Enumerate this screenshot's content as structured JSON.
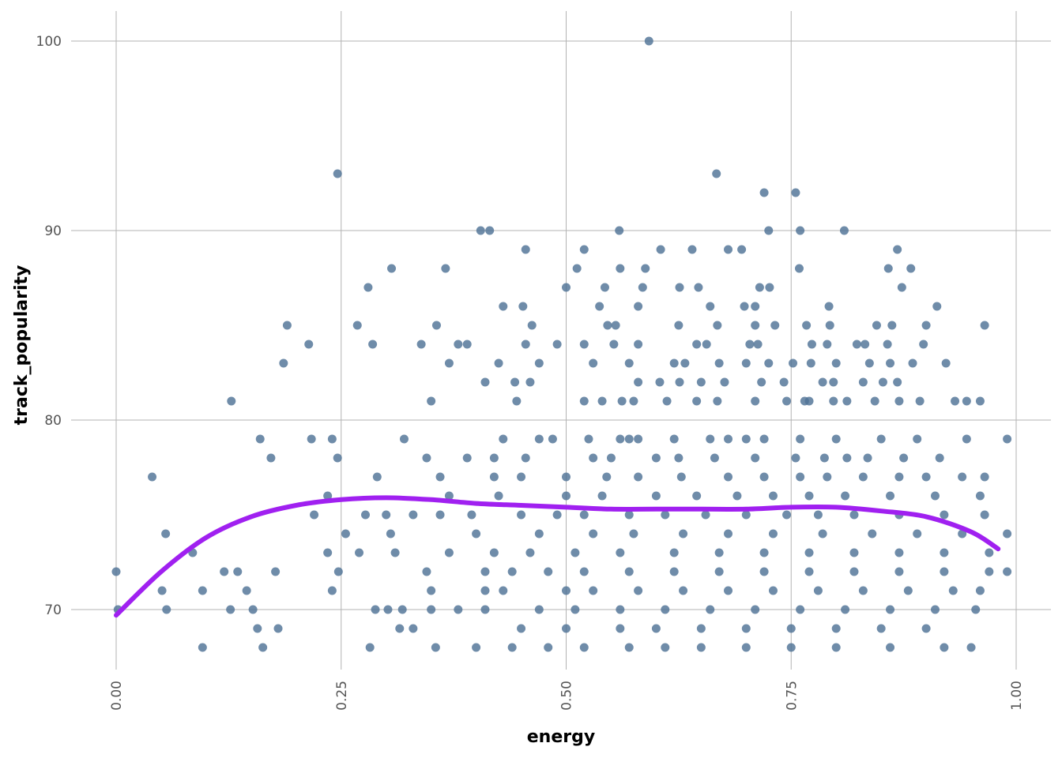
{
  "chart_data": {
    "type": "scatter",
    "title": "",
    "xlabel": "energy",
    "ylabel": "track_popularity",
    "xlim": [
      0,
      1
    ],
    "ylim": [
      68,
      100
    ],
    "x_ticks": [
      0,
      0.25,
      0.5,
      0.75,
      1.0
    ],
    "x_tick_labels": [
      "0.00",
      "0.25",
      "0.50",
      "0.75",
      "1.00"
    ],
    "y_ticks": [
      70,
      80,
      90,
      100
    ],
    "y_tick_labels": [
      "70",
      "80",
      "90",
      "100"
    ],
    "grid": true,
    "legend": "none",
    "point_color": "#4f7396",
    "trend_color": "#a020f0",
    "points": [
      [
        0.592,
        100
      ],
      [
        0.246,
        93
      ],
      [
        0.667,
        93
      ],
      [
        0.72,
        92
      ],
      [
        0.755,
        92
      ],
      [
        0.405,
        90
      ],
      [
        0.415,
        90
      ],
      [
        0.559,
        90
      ],
      [
        0.725,
        90
      ],
      [
        0.76,
        90
      ],
      [
        0.809,
        90
      ],
      [
        0.455,
        89
      ],
      [
        0.52,
        89
      ],
      [
        0.605,
        89
      ],
      [
        0.64,
        89
      ],
      [
        0.68,
        89
      ],
      [
        0.695,
        89
      ],
      [
        0.868,
        89
      ],
      [
        0.306,
        88
      ],
      [
        0.366,
        88
      ],
      [
        0.512,
        88
      ],
      [
        0.56,
        88
      ],
      [
        0.588,
        88
      ],
      [
        0.759,
        88
      ],
      [
        0.858,
        88
      ],
      [
        0.883,
        88
      ],
      [
        0.28,
        87
      ],
      [
        0.5,
        87
      ],
      [
        0.543,
        87
      ],
      [
        0.585,
        87
      ],
      [
        0.626,
        87
      ],
      [
        0.647,
        87
      ],
      [
        0.715,
        87
      ],
      [
        0.726,
        87
      ],
      [
        0.873,
        87
      ],
      [
        0.43,
        86
      ],
      [
        0.452,
        86
      ],
      [
        0.537,
        86
      ],
      [
        0.58,
        86
      ],
      [
        0.66,
        86
      ],
      [
        0.698,
        86
      ],
      [
        0.71,
        86
      ],
      [
        0.792,
        86
      ],
      [
        0.912,
        86
      ],
      [
        0.19,
        85
      ],
      [
        0.268,
        85
      ],
      [
        0.356,
        85
      ],
      [
        0.462,
        85
      ],
      [
        0.546,
        85
      ],
      [
        0.555,
        85
      ],
      [
        0.625,
        85
      ],
      [
        0.668,
        85
      ],
      [
        0.71,
        85
      ],
      [
        0.732,
        85
      ],
      [
        0.767,
        85
      ],
      [
        0.793,
        85
      ],
      [
        0.845,
        85
      ],
      [
        0.862,
        85
      ],
      [
        0.9,
        85
      ],
      [
        0.965,
        85
      ],
      [
        0.214,
        84
      ],
      [
        0.285,
        84
      ],
      [
        0.339,
        84
      ],
      [
        0.38,
        84
      ],
      [
        0.39,
        84
      ],
      [
        0.455,
        84
      ],
      [
        0.49,
        84
      ],
      [
        0.52,
        84
      ],
      [
        0.553,
        84
      ],
      [
        0.58,
        84
      ],
      [
        0.645,
        84
      ],
      [
        0.656,
        84
      ],
      [
        0.704,
        84
      ],
      [
        0.713,
        84
      ],
      [
        0.773,
        84
      ],
      [
        0.79,
        84
      ],
      [
        0.823,
        84
      ],
      [
        0.832,
        84
      ],
      [
        0.857,
        84
      ],
      [
        0.897,
        84
      ],
      [
        0.186,
        83
      ],
      [
        0.37,
        83
      ],
      [
        0.425,
        83
      ],
      [
        0.47,
        83
      ],
      [
        0.53,
        83
      ],
      [
        0.57,
        83
      ],
      [
        0.62,
        83
      ],
      [
        0.632,
        83
      ],
      [
        0.67,
        83
      ],
      [
        0.7,
        83
      ],
      [
        0.725,
        83
      ],
      [
        0.752,
        83
      ],
      [
        0.772,
        83
      ],
      [
        0.8,
        83
      ],
      [
        0.837,
        83
      ],
      [
        0.86,
        83
      ],
      [
        0.885,
        83
      ],
      [
        0.922,
        83
      ],
      [
        0.41,
        82
      ],
      [
        0.443,
        82
      ],
      [
        0.46,
        82
      ],
      [
        0.58,
        82
      ],
      [
        0.604,
        82
      ],
      [
        0.626,
        82
      ],
      [
        0.65,
        82
      ],
      [
        0.676,
        82
      ],
      [
        0.717,
        82
      ],
      [
        0.742,
        82
      ],
      [
        0.785,
        82
      ],
      [
        0.797,
        82
      ],
      [
        0.83,
        82
      ],
      [
        0.852,
        82
      ],
      [
        0.868,
        82
      ],
      [
        0.128,
        81
      ],
      [
        0.35,
        81
      ],
      [
        0.445,
        81
      ],
      [
        0.52,
        81
      ],
      [
        0.54,
        81
      ],
      [
        0.562,
        81
      ],
      [
        0.575,
        81
      ],
      [
        0.612,
        81
      ],
      [
        0.645,
        81
      ],
      [
        0.668,
        81
      ],
      [
        0.71,
        81
      ],
      [
        0.745,
        81
      ],
      [
        0.765,
        81
      ],
      [
        0.77,
        81
      ],
      [
        0.797,
        81
      ],
      [
        0.812,
        81
      ],
      [
        0.843,
        81
      ],
      [
        0.87,
        81
      ],
      [
        0.893,
        81
      ],
      [
        0.932,
        81
      ],
      [
        0.945,
        81
      ],
      [
        0.96,
        81
      ],
      [
        0.16,
        79
      ],
      [
        0.217,
        79
      ],
      [
        0.24,
        79
      ],
      [
        0.32,
        79
      ],
      [
        0.43,
        79
      ],
      [
        0.47,
        79
      ],
      [
        0.485,
        79
      ],
      [
        0.525,
        79
      ],
      [
        0.56,
        79
      ],
      [
        0.57,
        79
      ],
      [
        0.58,
        79
      ],
      [
        0.62,
        79
      ],
      [
        0.66,
        79
      ],
      [
        0.68,
        79
      ],
      [
        0.7,
        79
      ],
      [
        0.72,
        79
      ],
      [
        0.76,
        79
      ],
      [
        0.8,
        79
      ],
      [
        0.85,
        79
      ],
      [
        0.89,
        79
      ],
      [
        0.945,
        79
      ],
      [
        0.99,
        79
      ],
      [
        0.172,
        78
      ],
      [
        0.246,
        78
      ],
      [
        0.345,
        78
      ],
      [
        0.39,
        78
      ],
      [
        0.42,
        78
      ],
      [
        0.455,
        78
      ],
      [
        0.53,
        78
      ],
      [
        0.55,
        78
      ],
      [
        0.6,
        78
      ],
      [
        0.625,
        78
      ],
      [
        0.665,
        78
      ],
      [
        0.71,
        78
      ],
      [
        0.755,
        78
      ],
      [
        0.787,
        78
      ],
      [
        0.812,
        78
      ],
      [
        0.835,
        78
      ],
      [
        0.875,
        78
      ],
      [
        0.915,
        78
      ],
      [
        0.29,
        77
      ],
      [
        0.36,
        77
      ],
      [
        0.42,
        77
      ],
      [
        0.45,
        77
      ],
      [
        0.5,
        77
      ],
      [
        0.545,
        77
      ],
      [
        0.58,
        77
      ],
      [
        0.628,
        77
      ],
      [
        0.68,
        77
      ],
      [
        0.72,
        77
      ],
      [
        0.76,
        77
      ],
      [
        0.79,
        77
      ],
      [
        0.83,
        77
      ],
      [
        0.87,
        77
      ],
      [
        0.9,
        77
      ],
      [
        0.94,
        77
      ],
      [
        0.965,
        77
      ],
      [
        0.04,
        77
      ],
      [
        0.235,
        76
      ],
      [
        0.37,
        76
      ],
      [
        0.425,
        76
      ],
      [
        0.5,
        76
      ],
      [
        0.54,
        76
      ],
      [
        0.6,
        76
      ],
      [
        0.645,
        76
      ],
      [
        0.69,
        76
      ],
      [
        0.73,
        76
      ],
      [
        0.77,
        76
      ],
      [
        0.81,
        76
      ],
      [
        0.86,
        76
      ],
      [
        0.91,
        76
      ],
      [
        0.96,
        76
      ],
      [
        0.22,
        75
      ],
      [
        0.277,
        75
      ],
      [
        0.3,
        75
      ],
      [
        0.33,
        75
      ],
      [
        0.36,
        75
      ],
      [
        0.395,
        75
      ],
      [
        0.45,
        75
      ],
      [
        0.49,
        75
      ],
      [
        0.52,
        75
      ],
      [
        0.57,
        75
      ],
      [
        0.61,
        75
      ],
      [
        0.655,
        75
      ],
      [
        0.7,
        75
      ],
      [
        0.745,
        75
      ],
      [
        0.78,
        75
      ],
      [
        0.82,
        75
      ],
      [
        0.87,
        75
      ],
      [
        0.92,
        75
      ],
      [
        0.965,
        75
      ],
      [
        0.055,
        74
      ],
      [
        0.255,
        74
      ],
      [
        0.305,
        74
      ],
      [
        0.4,
        74
      ],
      [
        0.47,
        74
      ],
      [
        0.53,
        74
      ],
      [
        0.575,
        74
      ],
      [
        0.63,
        74
      ],
      [
        0.68,
        74
      ],
      [
        0.73,
        74
      ],
      [
        0.785,
        74
      ],
      [
        0.84,
        74
      ],
      [
        0.89,
        74
      ],
      [
        0.94,
        74
      ],
      [
        0.99,
        74
      ],
      [
        0.085,
        73
      ],
      [
        0.235,
        73
      ],
      [
        0.27,
        73
      ],
      [
        0.31,
        73
      ],
      [
        0.37,
        73
      ],
      [
        0.42,
        73
      ],
      [
        0.46,
        73
      ],
      [
        0.51,
        73
      ],
      [
        0.56,
        73
      ],
      [
        0.62,
        73
      ],
      [
        0.67,
        73
      ],
      [
        0.72,
        73
      ],
      [
        0.77,
        73
      ],
      [
        0.82,
        73
      ],
      [
        0.87,
        73
      ],
      [
        0.92,
        73
      ],
      [
        0.97,
        73
      ],
      [
        0.0,
        72
      ],
      [
        0.12,
        72
      ],
      [
        0.135,
        72
      ],
      [
        0.177,
        72
      ],
      [
        0.247,
        72
      ],
      [
        0.345,
        72
      ],
      [
        0.41,
        72
      ],
      [
        0.44,
        72
      ],
      [
        0.48,
        72
      ],
      [
        0.52,
        72
      ],
      [
        0.57,
        72
      ],
      [
        0.62,
        72
      ],
      [
        0.67,
        72
      ],
      [
        0.72,
        72
      ],
      [
        0.77,
        72
      ],
      [
        0.82,
        72
      ],
      [
        0.87,
        72
      ],
      [
        0.92,
        72
      ],
      [
        0.97,
        72
      ],
      [
        0.99,
        72
      ],
      [
        0.051,
        71
      ],
      [
        0.096,
        71
      ],
      [
        0.145,
        71
      ],
      [
        0.24,
        71
      ],
      [
        0.35,
        71
      ],
      [
        0.41,
        71
      ],
      [
        0.43,
        71
      ],
      [
        0.5,
        71
      ],
      [
        0.53,
        71
      ],
      [
        0.58,
        71
      ],
      [
        0.63,
        71
      ],
      [
        0.68,
        71
      ],
      [
        0.73,
        71
      ],
      [
        0.78,
        71
      ],
      [
        0.83,
        71
      ],
      [
        0.88,
        71
      ],
      [
        0.93,
        71
      ],
      [
        0.96,
        71
      ],
      [
        0.002,
        70
      ],
      [
        0.056,
        70
      ],
      [
        0.127,
        70
      ],
      [
        0.152,
        70
      ],
      [
        0.288,
        70
      ],
      [
        0.302,
        70
      ],
      [
        0.318,
        70
      ],
      [
        0.35,
        70
      ],
      [
        0.38,
        70
      ],
      [
        0.41,
        70
      ],
      [
        0.47,
        70
      ],
      [
        0.51,
        70
      ],
      [
        0.56,
        70
      ],
      [
        0.61,
        70
      ],
      [
        0.66,
        70
      ],
      [
        0.71,
        70
      ],
      [
        0.76,
        70
      ],
      [
        0.81,
        70
      ],
      [
        0.86,
        70
      ],
      [
        0.91,
        70
      ],
      [
        0.955,
        70
      ],
      [
        0.157,
        69
      ],
      [
        0.18,
        69
      ],
      [
        0.315,
        69
      ],
      [
        0.33,
        69
      ],
      [
        0.45,
        69
      ],
      [
        0.5,
        69
      ],
      [
        0.56,
        69
      ],
      [
        0.6,
        69
      ],
      [
        0.65,
        69
      ],
      [
        0.7,
        69
      ],
      [
        0.75,
        69
      ],
      [
        0.8,
        69
      ],
      [
        0.85,
        69
      ],
      [
        0.9,
        69
      ],
      [
        0.096,
        68
      ],
      [
        0.163,
        68
      ],
      [
        0.282,
        68
      ],
      [
        0.355,
        68
      ],
      [
        0.4,
        68
      ],
      [
        0.44,
        68
      ],
      [
        0.48,
        68
      ],
      [
        0.52,
        68
      ],
      [
        0.57,
        68
      ],
      [
        0.61,
        68
      ],
      [
        0.65,
        68
      ],
      [
        0.7,
        68
      ],
      [
        0.75,
        68
      ],
      [
        0.8,
        68
      ],
      [
        0.86,
        68
      ],
      [
        0.92,
        68
      ],
      [
        0.95,
        68
      ]
    ],
    "trend": [
      [
        0.0,
        69.7
      ],
      [
        0.05,
        72.0
      ],
      [
        0.1,
        73.8
      ],
      [
        0.15,
        74.9
      ],
      [
        0.2,
        75.5
      ],
      [
        0.25,
        75.8
      ],
      [
        0.3,
        75.9
      ],
      [
        0.35,
        75.8
      ],
      [
        0.4,
        75.6
      ],
      [
        0.45,
        75.5
      ],
      [
        0.5,
        75.4
      ],
      [
        0.55,
        75.3
      ],
      [
        0.6,
        75.3
      ],
      [
        0.65,
        75.3
      ],
      [
        0.7,
        75.3
      ],
      [
        0.75,
        75.4
      ],
      [
        0.8,
        75.4
      ],
      [
        0.85,
        75.2
      ],
      [
        0.9,
        74.9
      ],
      [
        0.95,
        74.1
      ],
      [
        0.98,
        73.2
      ]
    ]
  }
}
